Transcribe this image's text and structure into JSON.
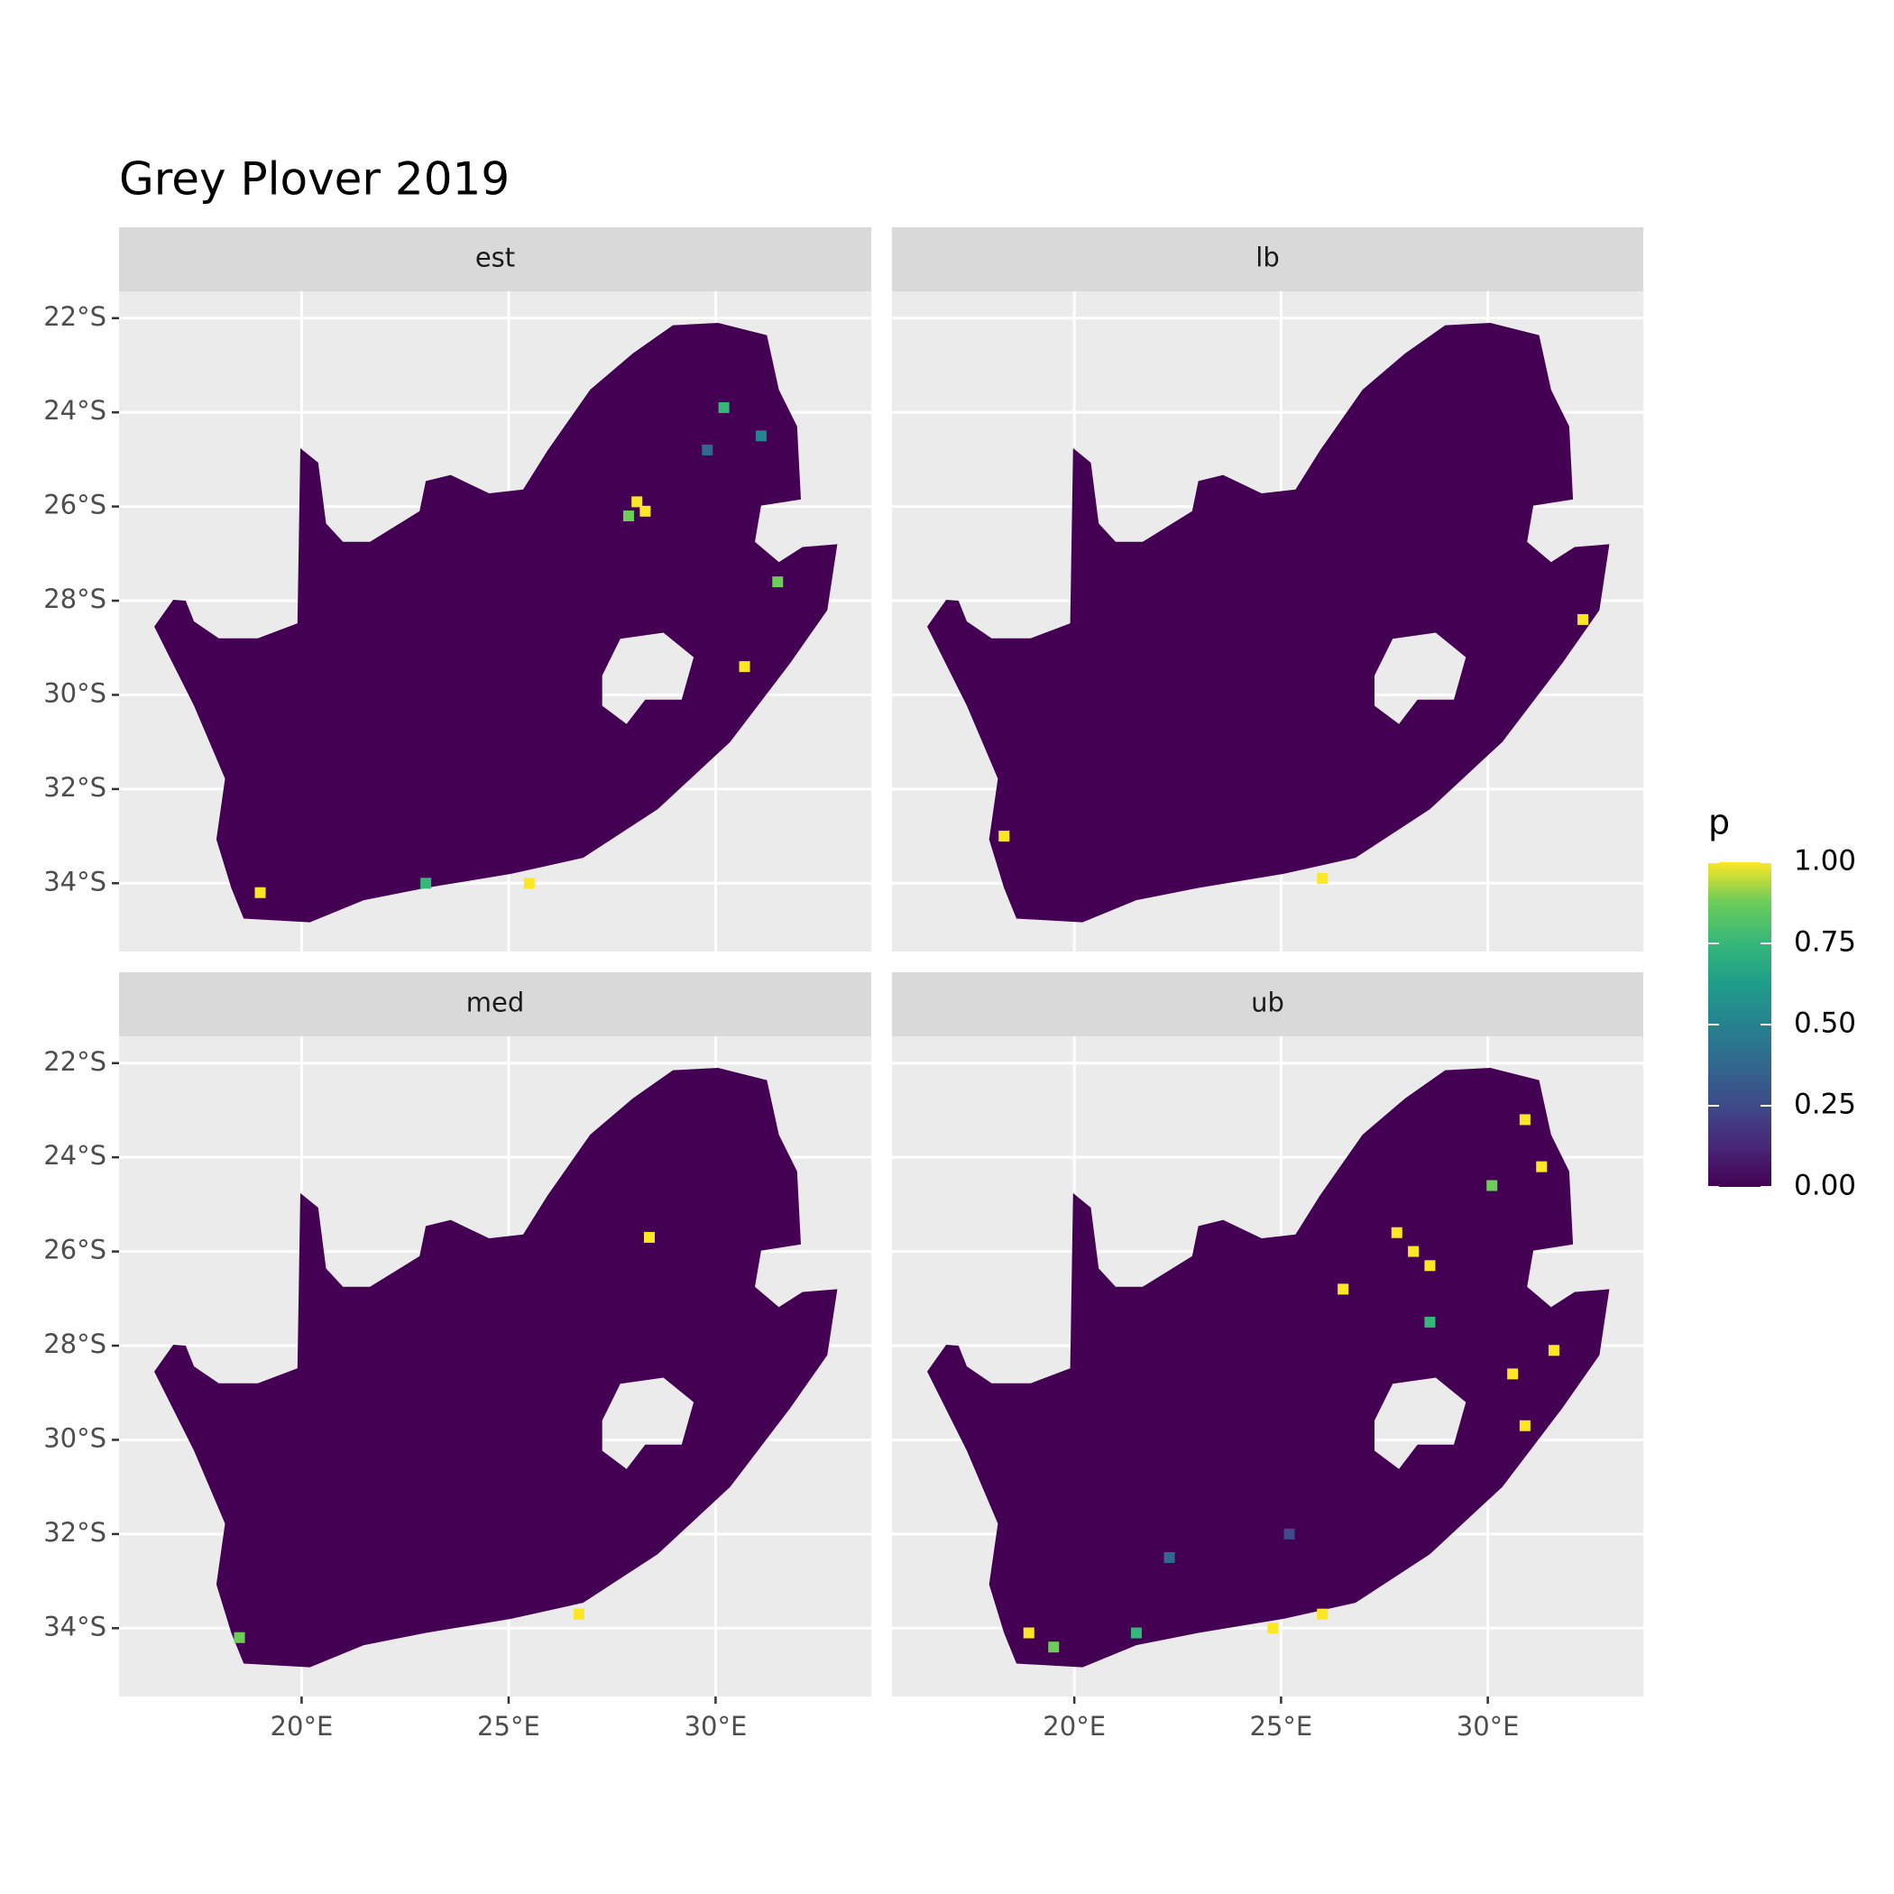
{
  "chart_data": {
    "type": "map",
    "title": "Grey Plover 2019",
    "facets": [
      "est",
      "lb",
      "med",
      "ub"
    ],
    "xlim": [
      15.59,
      33.76
    ],
    "ylim": [
      -35.45,
      -21.43
    ],
    "xticks": [
      {
        "value": 20,
        "label": "20°E"
      },
      {
        "value": 25,
        "label": "25°E"
      },
      {
        "value": 30,
        "label": "30°E"
      }
    ],
    "yticks": [
      {
        "value": -22,
        "label": "22°S"
      },
      {
        "value": -24,
        "label": "24°S"
      },
      {
        "value": -26,
        "label": "26°S"
      },
      {
        "value": -28,
        "label": "28°S"
      },
      {
        "value": -30,
        "label": "30°S"
      },
      {
        "value": -32,
        "label": "32°S"
      },
      {
        "value": -34,
        "label": "34°S"
      }
    ],
    "grid": true,
    "legend": {
      "title": "p",
      "lim": [
        0,
        1
      ],
      "ticks": [
        {
          "value": 0,
          "label": "0.00"
        },
        {
          "value": 0.25,
          "label": "0.25"
        },
        {
          "value": 0.5,
          "label": "0.50"
        },
        {
          "value": 0.75,
          "label": "0.75"
        },
        {
          "value": 1,
          "label": "1.00"
        }
      ]
    }
  }
}
